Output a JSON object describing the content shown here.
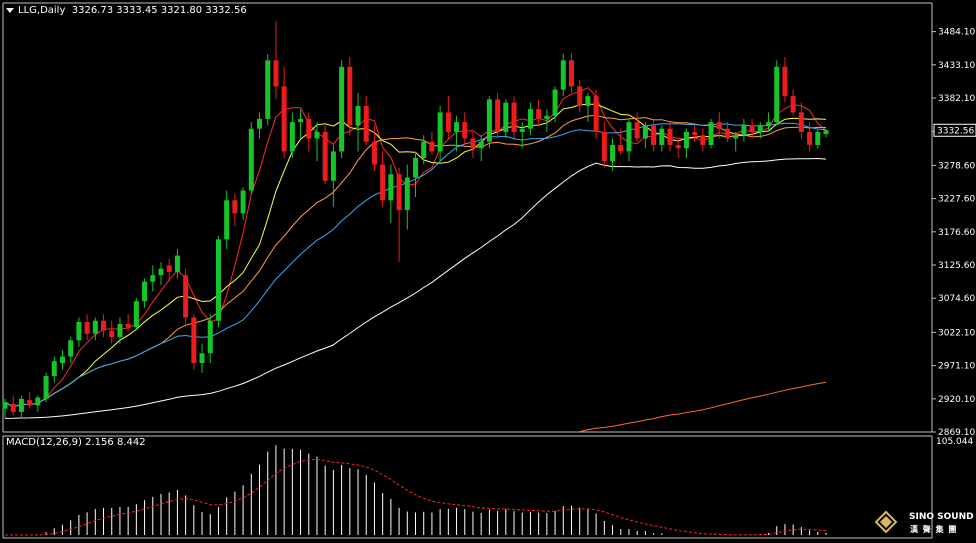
{
  "symbol_header": {
    "symbol": "LLG,Daily",
    "ohlc": "3326.73 3333.45 3321.80 3332.56"
  },
  "macd_header": {
    "label": "MACD(12,26,9)",
    "values": "2.156 8.442"
  },
  "logo": {
    "line1": "SINO SOUND",
    "line2": "漢 聲 集 團"
  },
  "colors": {
    "background": "#000000",
    "axis": "#c0c0c0",
    "bull": "#16c52a",
    "bear": "#ee1c1c",
    "ma5": "#ff2a2a",
    "ma10": "#ffff40",
    "ma20": "#ffa040",
    "ma30": "#3da9f0",
    "ma60": "#ffffff",
    "ma120": "#ff6a2a",
    "macd_hist": "#ffffff",
    "macd_signal": "#ff2222",
    "current_price_box": "#ffffff"
  },
  "chart_data": [
    {
      "type": "candlestick",
      "title": "LLG,Daily",
      "y_ticks": [
        "3484.10",
        "3433.10",
        "3382.10",
        "3330.80",
        "3278.60",
        "3227.60",
        "3176.60",
        "3125.60",
        "3074.60",
        "3022.10",
        "2971.10",
        "2920.10",
        "2869.10"
      ],
      "ylim": [
        2869.1,
        3505.0
      ],
      "current_price": "3332.56",
      "candles": [
        [
          2905,
          2920,
          2890,
          2915
        ],
        [
          2912,
          2925,
          2895,
          2900
        ],
        [
          2900,
          2925,
          2890,
          2920
        ],
        [
          2918,
          2930,
          2905,
          2910
        ],
        [
          2910,
          2925,
          2900,
          2922
        ],
        [
          2920,
          2960,
          2915,
          2955
        ],
        [
          2955,
          2985,
          2945,
          2978
        ],
        [
          2975,
          2995,
          2965,
          2985
        ],
        [
          2985,
          3015,
          2975,
          3010
        ],
        [
          3010,
          3045,
          3000,
          3038
        ],
        [
          3038,
          3050,
          3010,
          3020
        ],
        [
          3020,
          3045,
          3010,
          3040
        ],
        [
          3040,
          3050,
          3015,
          3025
        ],
        [
          3025,
          3040,
          3005,
          3015
        ],
        [
          3015,
          3045,
          3005,
          3035
        ],
        [
          3035,
          3050,
          3025,
          3030
        ],
        [
          3030,
          3075,
          3025,
          3070
        ],
        [
          3070,
          3105,
          3060,
          3100
        ],
        [
          3100,
          3125,
          3085,
          3110
        ],
        [
          3110,
          3130,
          3095,
          3120
        ],
        [
          3125,
          3135,
          3100,
          3115
        ],
        [
          3115,
          3150,
          3105,
          3140
        ],
        [
          3110,
          3120,
          3030,
          3045
        ],
        [
          3045,
          3050,
          2965,
          2975
        ],
        [
          2975,
          3005,
          2960,
          2990
        ],
        [
          2990,
          3050,
          2975,
          3040
        ],
        [
          3040,
          3170,
          3030,
          3165
        ],
        [
          3165,
          3240,
          3150,
          3225
        ],
        [
          3225,
          3235,
          3185,
          3205
        ],
        [
          3205,
          3245,
          3195,
          3240
        ],
        [
          3240,
          3345,
          3235,
          3335
        ],
        [
          3335,
          3360,
          3320,
          3350
        ],
        [
          3350,
          3450,
          3340,
          3440
        ],
        [
          3440,
          3500,
          3380,
          3400
        ],
        [
          3400,
          3430,
          3290,
          3300
        ],
        [
          3300,
          3360,
          3290,
          3345
        ],
        [
          3345,
          3365,
          3320,
          3350
        ],
        [
          3350,
          3360,
          3300,
          3320
        ],
        [
          3320,
          3345,
          3285,
          3330
        ],
        [
          3330,
          3340,
          3250,
          3255
        ],
        [
          3255,
          3310,
          3215,
          3300
        ],
        [
          3300,
          3440,
          3290,
          3430
        ],
        [
          3430,
          3445,
          3325,
          3340
        ],
        [
          3340,
          3390,
          3300,
          3370
        ],
        [
          3370,
          3385,
          3310,
          3315
        ],
        [
          3315,
          3340,
          3270,
          3280
        ],
        [
          3280,
          3300,
          3215,
          3225
        ],
        [
          3225,
          3280,
          3190,
          3265
        ],
        [
          3265,
          3275,
          3130,
          3210
        ],
        [
          3210,
          3280,
          3180,
          3260
        ],
        [
          3260,
          3300,
          3230,
          3290
        ],
        [
          3290,
          3325,
          3280,
          3315
        ],
        [
          3315,
          3330,
          3295,
          3300
        ],
        [
          3300,
          3370,
          3285,
          3360
        ],
        [
          3360,
          3385,
          3320,
          3330
        ],
        [
          3330,
          3355,
          3300,
          3345
        ],
        [
          3345,
          3360,
          3310,
          3320
        ],
        [
          3320,
          3330,
          3290,
          3305
        ],
        [
          3305,
          3325,
          3285,
          3315
        ],
        [
          3315,
          3385,
          3305,
          3380
        ],
        [
          3380,
          3390,
          3320,
          3330
        ],
        [
          3330,
          3380,
          3320,
          3375
        ],
        [
          3375,
          3385,
          3320,
          3330
        ],
        [
          3330,
          3345,
          3305,
          3335
        ],
        [
          3335,
          3375,
          3325,
          3365
        ],
        [
          3365,
          3380,
          3340,
          3350
        ],
        [
          3350,
          3365,
          3330,
          3355
        ],
        [
          3355,
          3400,
          3345,
          3395
        ],
        [
          3395,
          3450,
          3385,
          3440
        ],
        [
          3440,
          3450,
          3390,
          3400
        ],
        [
          3400,
          3410,
          3360,
          3370
        ],
        [
          3370,
          3390,
          3345,
          3385
        ],
        [
          3385,
          3395,
          3320,
          3330
        ],
        [
          3330,
          3345,
          3275,
          3285
        ],
        [
          3285,
          3320,
          3270,
          3310
        ],
        [
          3310,
          3335,
          3295,
          3300
        ],
        [
          3300,
          3350,
          3285,
          3345
        ],
        [
          3345,
          3360,
          3315,
          3320
        ],
        [
          3320,
          3345,
          3305,
          3340
        ],
        [
          3340,
          3350,
          3300,
          3310
        ],
        [
          3310,
          3340,
          3300,
          3335
        ],
        [
          3335,
          3345,
          3300,
          3310
        ],
        [
          3310,
          3320,
          3290,
          3305
        ],
        [
          3305,
          3335,
          3290,
          3330
        ],
        [
          3330,
          3340,
          3315,
          3325
        ],
        [
          3325,
          3335,
          3300,
          3310
        ],
        [
          3310,
          3350,
          3305,
          3345
        ],
        [
          3345,
          3360,
          3320,
          3335
        ],
        [
          3335,
          3345,
          3315,
          3320
        ],
        [
          3320,
          3330,
          3300,
          3325
        ],
        [
          3325,
          3350,
          3315,
          3340
        ],
        [
          3340,
          3350,
          3320,
          3330
        ],
        [
          3330,
          3345,
          3320,
          3340
        ],
        [
          3340,
          3360,
          3330,
          3345
        ],
        [
          3345,
          3440,
          3340,
          3430
        ],
        [
          3430,
          3445,
          3375,
          3385
        ],
        [
          3385,
          3395,
          3355,
          3360
        ],
        [
          3360,
          3375,
          3320,
          3330
        ],
        [
          3330,
          3345,
          3300,
          3310
        ],
        [
          3310,
          3335,
          3305,
          3330
        ],
        [
          3326.73,
          3333.45,
          3321.8,
          3332.56
        ]
      ],
      "candle_format": [
        "open",
        "high",
        "low",
        "close"
      ],
      "moving_average_periods": [
        5,
        10,
        20,
        30,
        60,
        120
      ],
      "moving_average_start_values": [
        null,
        null,
        null,
        null,
        2890,
        2700
      ]
    },
    {
      "type": "bar+line",
      "title": "MACD(12,26,9)",
      "y_ticks": [
        "105.044"
      ],
      "series": [
        {
          "name": "MACD",
          "values": "histogram"
        },
        {
          "name": "Signal",
          "values": "line"
        }
      ],
      "last_values": {
        "macd": 2.156,
        "signal": 8.442
      }
    }
  ]
}
